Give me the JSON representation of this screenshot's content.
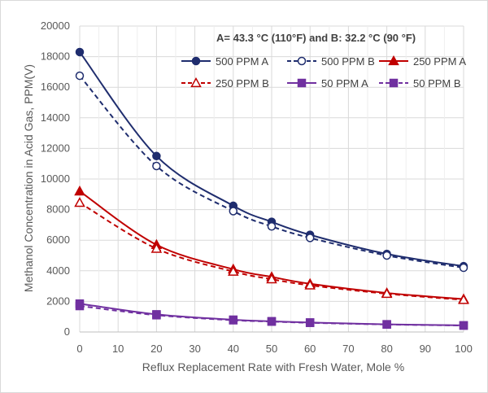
{
  "chart_data": {
    "type": "line",
    "title": "",
    "annotation": "A= 43.3 °C (110°F)  and B: 32.2 °C (90 °F)",
    "xlabel": "Reflux Replacement Rate with Fresh Water, Mole %",
    "ylabel": "Methanol Concentration in Acid  Gas, PPM(V)",
    "xlim": [
      0,
      100
    ],
    "ylim": [
      0,
      20000
    ],
    "xticks": [
      0,
      10,
      20,
      30,
      40,
      50,
      60,
      70,
      80,
      90,
      100
    ],
    "yticks": [
      0,
      2000,
      4000,
      6000,
      8000,
      10000,
      12000,
      14000,
      16000,
      18000,
      20000
    ],
    "grid": true,
    "legend_position": "top-right",
    "x": [
      0,
      20,
      40,
      50,
      60,
      80,
      100
    ],
    "series": [
      {
        "name": "500 PPM A",
        "color": "#1f2d6e",
        "dash": "solid",
        "marker": "circle",
        "filled": true,
        "values": [
          18300,
          11500,
          8250,
          7200,
          6350,
          5100,
          4300
        ]
      },
      {
        "name": "500 PPM B",
        "color": "#1f2d6e",
        "dash": "dashed",
        "marker": "circle",
        "filled": false,
        "values": [
          16750,
          10850,
          7900,
          6900,
          6150,
          5000,
          4200
        ]
      },
      {
        "name": "250 PPM A",
        "color": "#c00000",
        "dash": "solid",
        "marker": "triangle",
        "filled": true,
        "values": [
          9200,
          5700,
          4100,
          3600,
          3150,
          2550,
          2150
        ]
      },
      {
        "name": "250 PPM B",
        "color": "#c00000",
        "dash": "dashed",
        "marker": "triangle",
        "filled": false,
        "values": [
          8450,
          5450,
          3950,
          3450,
          3050,
          2500,
          2100
        ]
      },
      {
        "name": "50 PPM A",
        "color": "#7030a0",
        "dash": "solid",
        "marker": "square",
        "filled": true,
        "values": [
          1850,
          1150,
          800,
          700,
          620,
          500,
          430
        ]
      },
      {
        "name": "50 PPM B",
        "color": "#7030a0",
        "dash": "dashed",
        "marker": "square",
        "filled": true,
        "values": [
          1700,
          1100,
          770,
          680,
          600,
          490,
          420
        ]
      }
    ]
  }
}
